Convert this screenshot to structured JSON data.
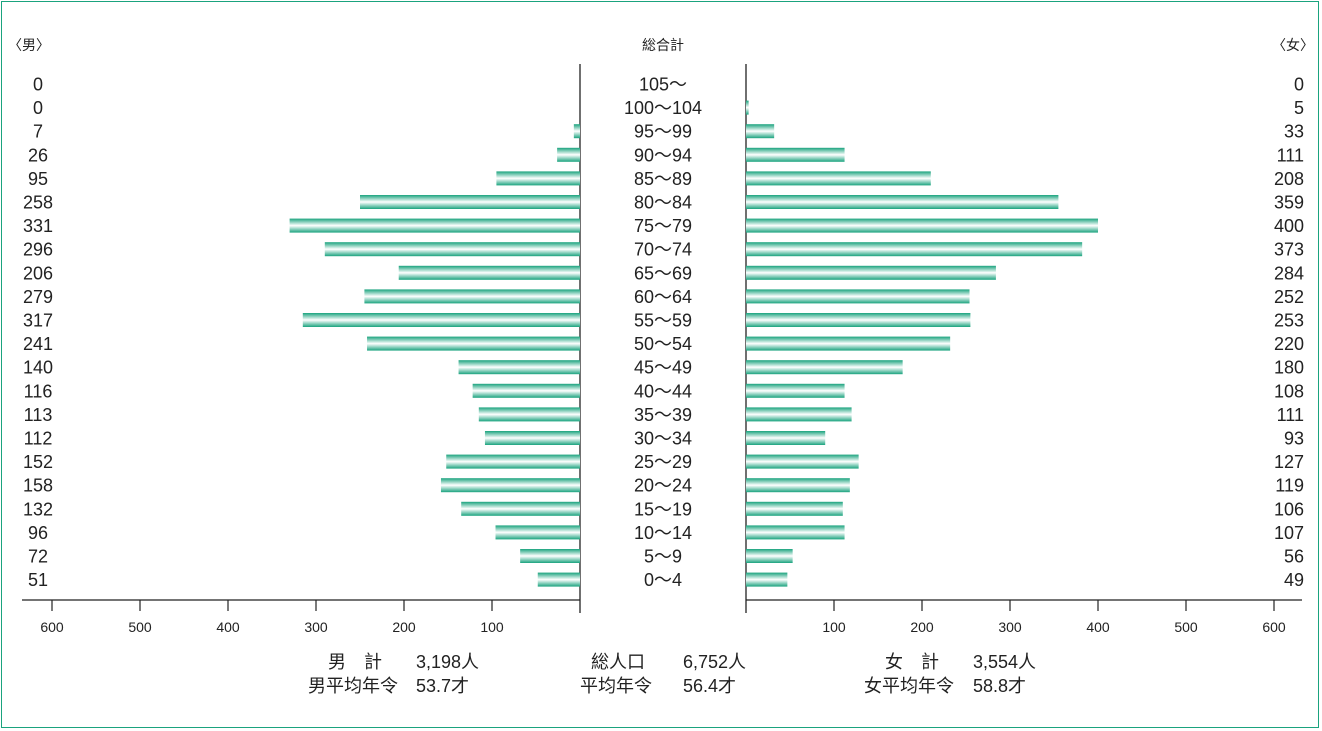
{
  "colors": {
    "border": "#1aa37e",
    "bar": "#1aa37e",
    "bar_highlight": "#ffffff"
  },
  "chart_data": {
    "type": "bar",
    "subtype": "population-pyramid",
    "title": "総合計",
    "left_label": "〈男〉",
    "right_label": "〈女〉",
    "categories": [
      "105〜",
      "100〜104",
      "95〜99",
      "90〜94",
      "85〜89",
      "80〜84",
      "75〜79",
      "70〜74",
      "65〜69",
      "60〜64",
      "55〜59",
      "50〜54",
      "45〜49",
      "40〜44",
      "35〜39",
      "30〜34",
      "25〜29",
      "20〜24",
      "15〜19",
      "10〜14",
      "5〜9",
      "0〜4"
    ],
    "series": [
      {
        "name": "男",
        "side": "left",
        "values": [
          0,
          0,
          7,
          26,
          95,
          258,
          331,
          296,
          206,
          279,
          317,
          241,
          140,
          116,
          113,
          112,
          152,
          158,
          132,
          96,
          72,
          51
        ],
        "bar_lengths": [
          0,
          0,
          7,
          26,
          95,
          250,
          330,
          290,
          206,
          245,
          315,
          242,
          138,
          122,
          115,
          108,
          152,
          158,
          135,
          96,
          68,
          48
        ]
      },
      {
        "name": "女",
        "side": "right",
        "values": [
          0,
          5,
          33,
          111,
          208,
          359,
          400,
          373,
          284,
          252,
          253,
          220,
          180,
          108,
          111,
          93,
          127,
          119,
          106,
          107,
          56,
          49
        ],
        "bar_lengths": [
          0,
          3,
          32,
          112,
          210,
          355,
          400,
          382,
          284,
          254,
          255,
          232,
          178,
          112,
          120,
          90,
          128,
          118,
          110,
          112,
          53,
          47
        ]
      }
    ],
    "axis_ticks_left": [
      "600",
      "500",
      "400",
      "300",
      "200",
      "100"
    ],
    "axis_ticks_right": [
      "100",
      "200",
      "300",
      "400",
      "500",
      "600"
    ],
    "xlim": [
      0,
      600
    ],
    "grid": false
  },
  "summary": {
    "male_total_label": "男　計",
    "male_total_value": "3,198人",
    "male_avg_label": "男平均年令",
    "male_avg_value": "53.7才",
    "total_label": "総人口",
    "total_value": "6,752人",
    "avg_label": "平均年令",
    "avg_value": "56.4才",
    "female_total_label": "女　計",
    "female_total_value": "3,554人",
    "female_avg_label": "女平均年令",
    "female_avg_value": "58.8才"
  }
}
